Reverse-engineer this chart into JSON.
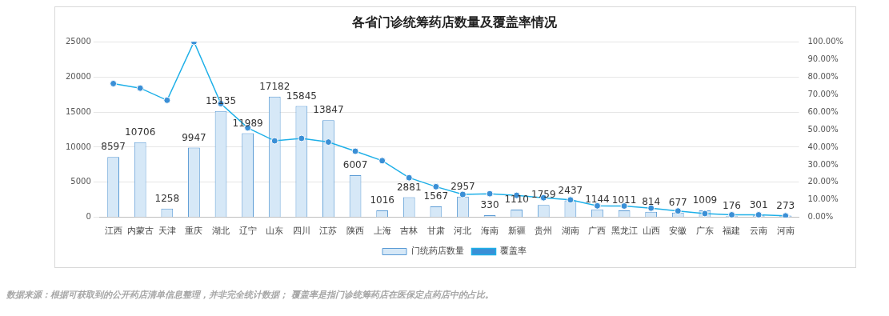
{
  "chart_data": {
    "type": "bar",
    "title": "各省门诊统筹药店数量及覆盖率情况",
    "categories": [
      "江西",
      "内蒙古",
      "天津",
      "重庆",
      "湖北",
      "辽宁",
      "山东",
      "四川",
      "江苏",
      "陕西",
      "上海",
      "吉林",
      "甘肃",
      "河北",
      "海南",
      "新疆",
      "贵州",
      "湖南",
      "广西",
      "黑龙江",
      "山西",
      "安徽",
      "广东",
      "福建",
      "云南",
      "河南"
    ],
    "series": [
      {
        "name": "门统药店数量",
        "color": "#d6e8f7",
        "values": [
          8597,
          10706,
          1258,
          9947,
          15135,
          11989,
          17182,
          15845,
          13847,
          6007,
          1016,
          2881,
          1567,
          2957,
          330,
          1110,
          1759,
          2437,
          1144,
          1011,
          814,
          677,
          1009,
          176,
          301,
          273
        ],
        "value_labels": [
          "8597",
          "10706",
          "1258",
          "9947",
          "15135",
          "11989",
          "17182",
          "15845",
          "13847",
          "6007",
          "1016",
          "2881",
          "1567",
          "2957",
          "330",
          "1110",
          "1759",
          "2437",
          "1144",
          "1011",
          "814",
          "677",
          "1009",
          "176",
          "301",
          "273"
        ]
      },
      {
        "name": "覆盖率",
        "type": "line",
        "axis": "y2",
        "color": "#1fb0e8",
        "values": [
          76.2,
          73.6,
          66.7,
          100,
          64.8,
          51,
          43.6,
          45,
          42.9,
          37.7,
          32.3,
          22.6,
          17.5,
          13.1,
          13.5,
          12.6,
          11.2,
          10,
          6.6,
          6.5,
          5.3,
          3.7,
          2.2,
          1.5,
          1.5,
          0.9
        ]
      }
    ],
    "ylim": [
      0,
      25000
    ],
    "yticks": [
      0,
      5000,
      10000,
      15000,
      20000,
      25000
    ],
    "y2lim": [
      0,
      100
    ],
    "y2ticks": [
      {
        "value": 0,
        "label": "0.00%"
      },
      {
        "value": 10,
        "label": "10.00%"
      },
      {
        "value": 20,
        "label": "20.00%"
      },
      {
        "value": 30,
        "label": "30.00%"
      },
      {
        "value": 40,
        "label": "40.00%"
      },
      {
        "value": 50,
        "label": "50.00%"
      },
      {
        "value": 60,
        "label": "60.00%"
      },
      {
        "value": 70,
        "label": "70.00%"
      },
      {
        "value": 80,
        "label": "80.00%"
      },
      {
        "value": 90,
        "label": "90.00%"
      },
      {
        "value": 100,
        "label": "100.00%"
      }
    ],
    "grid": "y",
    "legend": "bottom",
    "marker": "circle",
    "annotations": [
      "数据来源：根据可获取到的公开药店清单信息整理，并非完全统计数据； 覆盖率是指门诊统筹药店在医保定点药店中的占比。"
    ]
  }
}
